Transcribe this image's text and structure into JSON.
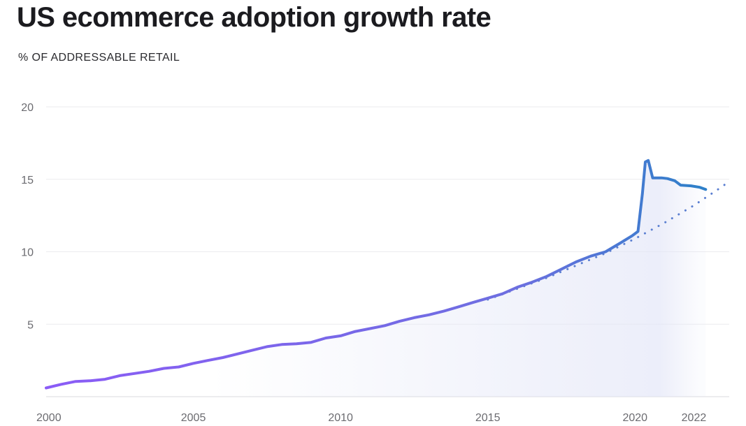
{
  "chart_data": {
    "type": "line",
    "title": "US ecommerce adoption growth rate",
    "subtitle": "% OF ADDRESSABLE RETAIL",
    "xlabel": "",
    "ylabel": "",
    "xlim": [
      2000,
      2023.2
    ],
    "ylim": [
      0,
      20
    ],
    "x_ticks": [
      2000,
      2005,
      2010,
      2015,
      2020,
      2022
    ],
    "y_ticks": [
      5,
      10,
      15,
      20
    ],
    "grid": true,
    "legend": "none",
    "colors": {
      "line_start": "#8b5cf6",
      "line_end": "#2f80c9",
      "trend": "#5b7fd1",
      "fill": "#e3e6f7",
      "grid": "#ebebee"
    },
    "series": [
      {
        "style": "solid",
        "points": [
          [
            2000.0,
            0.6
          ],
          [
            2000.5,
            0.85
          ],
          [
            2001.0,
            1.05
          ],
          [
            2001.5,
            1.1
          ],
          [
            2002.0,
            1.2
          ],
          [
            2002.5,
            1.45
          ],
          [
            2003.0,
            1.6
          ],
          [
            2003.5,
            1.75
          ],
          [
            2004.0,
            1.95
          ],
          [
            2004.5,
            2.05
          ],
          [
            2005.0,
            2.3
          ],
          [
            2005.5,
            2.5
          ],
          [
            2006.0,
            2.7
          ],
          [
            2006.5,
            2.95
          ],
          [
            2007.0,
            3.2
          ],
          [
            2007.5,
            3.45
          ],
          [
            2008.0,
            3.6
          ],
          [
            2008.5,
            3.65
          ],
          [
            2009.0,
            3.75
          ],
          [
            2009.5,
            4.05
          ],
          [
            2010.0,
            4.2
          ],
          [
            2010.5,
            4.5
          ],
          [
            2011.0,
            4.7
          ],
          [
            2011.5,
            4.9
          ],
          [
            2012.0,
            5.2
          ],
          [
            2012.5,
            5.45
          ],
          [
            2013.0,
            5.65
          ],
          [
            2013.5,
            5.9
          ],
          [
            2014.0,
            6.2
          ],
          [
            2014.5,
            6.5
          ],
          [
            2015.0,
            6.8
          ],
          [
            2015.5,
            7.1
          ],
          [
            2016.0,
            7.55
          ],
          [
            2016.5,
            7.9
          ],
          [
            2017.0,
            8.3
          ],
          [
            2017.5,
            8.8
          ],
          [
            2018.0,
            9.3
          ],
          [
            2018.5,
            9.7
          ],
          [
            2019.0,
            10.0
          ],
          [
            2019.5,
            10.6
          ],
          [
            2019.9,
            11.1
          ],
          [
            2020.1,
            11.4
          ],
          [
            2020.25,
            14.0
          ],
          [
            2020.35,
            16.2
          ],
          [
            2020.45,
            16.3
          ],
          [
            2020.6,
            15.1
          ],
          [
            2020.9,
            15.1
          ],
          [
            2021.1,
            15.05
          ],
          [
            2021.35,
            14.9
          ],
          [
            2021.55,
            14.6
          ],
          [
            2021.9,
            14.55
          ],
          [
            2022.2,
            14.45
          ],
          [
            2022.4,
            14.3
          ]
        ]
      },
      {
        "style": "dotted",
        "points": [
          [
            2015.0,
            6.7
          ],
          [
            2016.0,
            7.45
          ],
          [
            2017.0,
            8.2
          ],
          [
            2018.0,
            9.05
          ],
          [
            2019.0,
            9.9
          ],
          [
            2020.0,
            10.9
          ],
          [
            2021.0,
            12.0
          ],
          [
            2022.0,
            13.2
          ],
          [
            2023.0,
            14.55
          ],
          [
            2023.2,
            14.9
          ]
        ]
      }
    ]
  }
}
